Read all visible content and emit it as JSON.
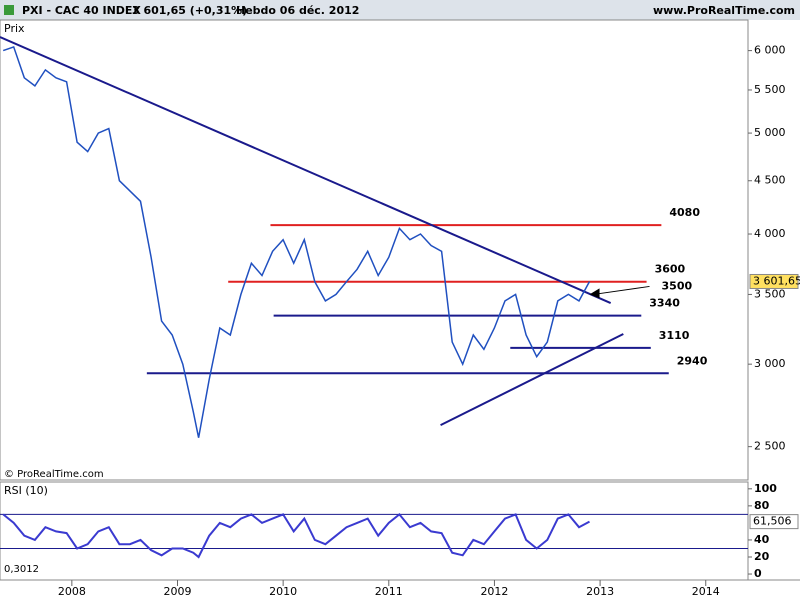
{
  "header": {
    "symbol": "PXI - CAC 40 INDEX",
    "quote": "3 601,65 (+0,31%)",
    "period": "Hebdo  06 déc. 2012",
    "site": "www.ProRealTime.com",
    "copyright": "© ProRealTime.com"
  },
  "chart_data": [
    {
      "type": "line",
      "title": "Prix",
      "log": true,
      "color": "#2050c0",
      "x": [
        2007.35,
        2007.45,
        2007.55,
        2007.65,
        2007.75,
        2007.85,
        2007.95,
        2008.05,
        2008.15,
        2008.25,
        2008.35,
        2008.45,
        2008.55,
        2008.65,
        2008.75,
        2008.85,
        2008.95,
        2009.05,
        2009.15,
        2009.2,
        2009.3,
        2009.4,
        2009.5,
        2009.6,
        2009.7,
        2009.8,
        2009.9,
        2010.0,
        2010.1,
        2010.2,
        2010.3,
        2010.4,
        2010.5,
        2010.6,
        2010.7,
        2010.8,
        2010.9,
        2011.0,
        2011.1,
        2011.2,
        2011.3,
        2011.4,
        2011.5,
        2011.6,
        2011.7,
        2011.8,
        2011.9,
        2012.0,
        2012.1,
        2012.2,
        2012.3,
        2012.4,
        2012.5,
        2012.6,
        2012.7,
        2012.8,
        2012.9
      ],
      "values": [
        6000,
        6050,
        5650,
        5550,
        5750,
        5650,
        5600,
        4900,
        4800,
        5000,
        5050,
        4500,
        4400,
        4300,
        3800,
        3300,
        3200,
        3000,
        2700,
        2550,
        2900,
        3250,
        3200,
        3500,
        3750,
        3650,
        3850,
        3950,
        3750,
        3950,
        3600,
        3450,
        3500,
        3600,
        3700,
        3850,
        3650,
        3800,
        4050,
        3950,
        4000,
        3900,
        3850,
        3150,
        3000,
        3200,
        3100,
        3250,
        3450,
        3500,
        3200,
        3050,
        3150,
        3450,
        3500,
        3450,
        3601.65
      ],
      "xlim": [
        2007.32,
        2014.4
      ],
      "xticks": [
        2008,
        2009,
        2010,
        2011,
        2012,
        2013,
        2014
      ],
      "ylim": [
        2390,
        6420
      ],
      "yticks": [
        {
          "value": 6000,
          "label": "6 000"
        },
        {
          "value": 5500,
          "label": "5 500"
        },
        {
          "value": 5000,
          "label": "5 000"
        },
        {
          "value": 4500,
          "label": "4 500"
        },
        {
          "value": 4000,
          "label": "4 000"
        },
        {
          "value": 3500,
          "label": "3 500"
        },
        {
          "value": 3000,
          "label": "3 000"
        },
        {
          "value": 2500,
          "label": "2 500"
        }
      ],
      "last": {
        "value": 3601.65,
        "label": "3 601,65"
      },
      "levels": [
        {
          "value": 4080,
          "from": 2009.88,
          "to": 2013.58,
          "color": "#e02020"
        },
        {
          "value": 3600,
          "from": 2009.48,
          "to": 2013.44,
          "color": "#e02020"
        },
        {
          "value": 3340,
          "from": 2009.91,
          "to": 2013.39,
          "color": "#1a1a8c"
        },
        {
          "value": 3110,
          "from": 2012.15,
          "to": 2013.48,
          "color": "#1a1a8c"
        },
        {
          "value": 2940,
          "from": 2008.71,
          "to": 2013.65,
          "color": "#1a1a8c"
        }
      ],
      "arrow_label": {
        "value": 3500,
        "x": 2012.9
      },
      "trendlines": [
        {
          "x": [
            2007.32,
            2013.1
          ],
          "y": [
            6183,
            3434
          ],
          "color": "#1a1a8c"
        },
        {
          "x": [
            2011.49,
            2013.22
          ],
          "y": [
            2622,
            3207
          ],
          "color": "#1a1a8c"
        }
      ]
    },
    {
      "type": "line",
      "title": "RSI (10)",
      "color": "#3a3ad0",
      "x": [
        2007.35,
        2007.45,
        2007.55,
        2007.65,
        2007.75,
        2007.85,
        2007.95,
        2008.05,
        2008.15,
        2008.25,
        2008.35,
        2008.45,
        2008.55,
        2008.65,
        2008.75,
        2008.85,
        2008.95,
        2009.05,
        2009.15,
        2009.2,
        2009.3,
        2009.4,
        2009.5,
        2009.6,
        2009.7,
        2009.8,
        2009.9,
        2010.0,
        2010.1,
        2010.2,
        2010.3,
        2010.4,
        2010.5,
        2010.6,
        2010.7,
        2010.8,
        2010.9,
        2011.0,
        2011.1,
        2011.2,
        2011.3,
        2011.4,
        2011.5,
        2011.6,
        2011.7,
        2011.8,
        2011.9,
        2012.0,
        2012.1,
        2012.2,
        2012.3,
        2012.4,
        2012.5,
        2012.6,
        2012.7,
        2012.8,
        2012.9
      ],
      "values": [
        70,
        60,
        45,
        40,
        55,
        50,
        48,
        30,
        35,
        50,
        55,
        35,
        35,
        40,
        28,
        22,
        30,
        30,
        25,
        20,
        45,
        60,
        55,
        65,
        70,
        60,
        65,
        70,
        50,
        65,
        40,
        35,
        45,
        55,
        60,
        65,
        45,
        60,
        70,
        55,
        60,
        50,
        48,
        25,
        22,
        40,
        35,
        50,
        65,
        70,
        40,
        30,
        40,
        65,
        70,
        55,
        61.506
      ],
      "xlim": [
        2007.32,
        2014.4
      ],
      "ylim": [
        -7,
        108
      ],
      "yticks": [
        0,
        20,
        40,
        80,
        100
      ],
      "levels": [
        70,
        30
      ],
      "last": {
        "value": 61.506,
        "label": "61,506"
      },
      "note": "0,3012"
    }
  ]
}
